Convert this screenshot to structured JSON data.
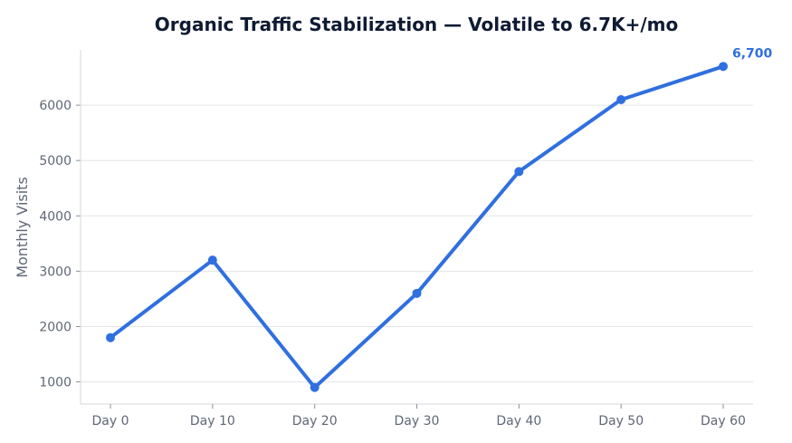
{
  "chart_data": {
    "type": "line",
    "title": "Organic Traffic Stabilization — Volatile to 6.7K+/mo",
    "xlabel": "",
    "ylabel": "Monthly Visits",
    "categories": [
      "Day 0",
      "Day 10",
      "Day 20",
      "Day 30",
      "Day 40",
      "Day 50",
      "Day 60"
    ],
    "series": [
      {
        "values": [
          1800,
          3200,
          900,
          2600,
          4800,
          6100,
          6700
        ],
        "color": "#2f6fe0"
      }
    ],
    "y_ticks": [
      1000,
      2000,
      3000,
      4000,
      5000,
      6000
    ],
    "ylim": [
      600,
      7000
    ],
    "grid": "horizontal",
    "annotations": [
      {
        "category": "Day 60",
        "value": 6700,
        "text": "6,700",
        "color": "#2f6fe0"
      }
    ]
  }
}
